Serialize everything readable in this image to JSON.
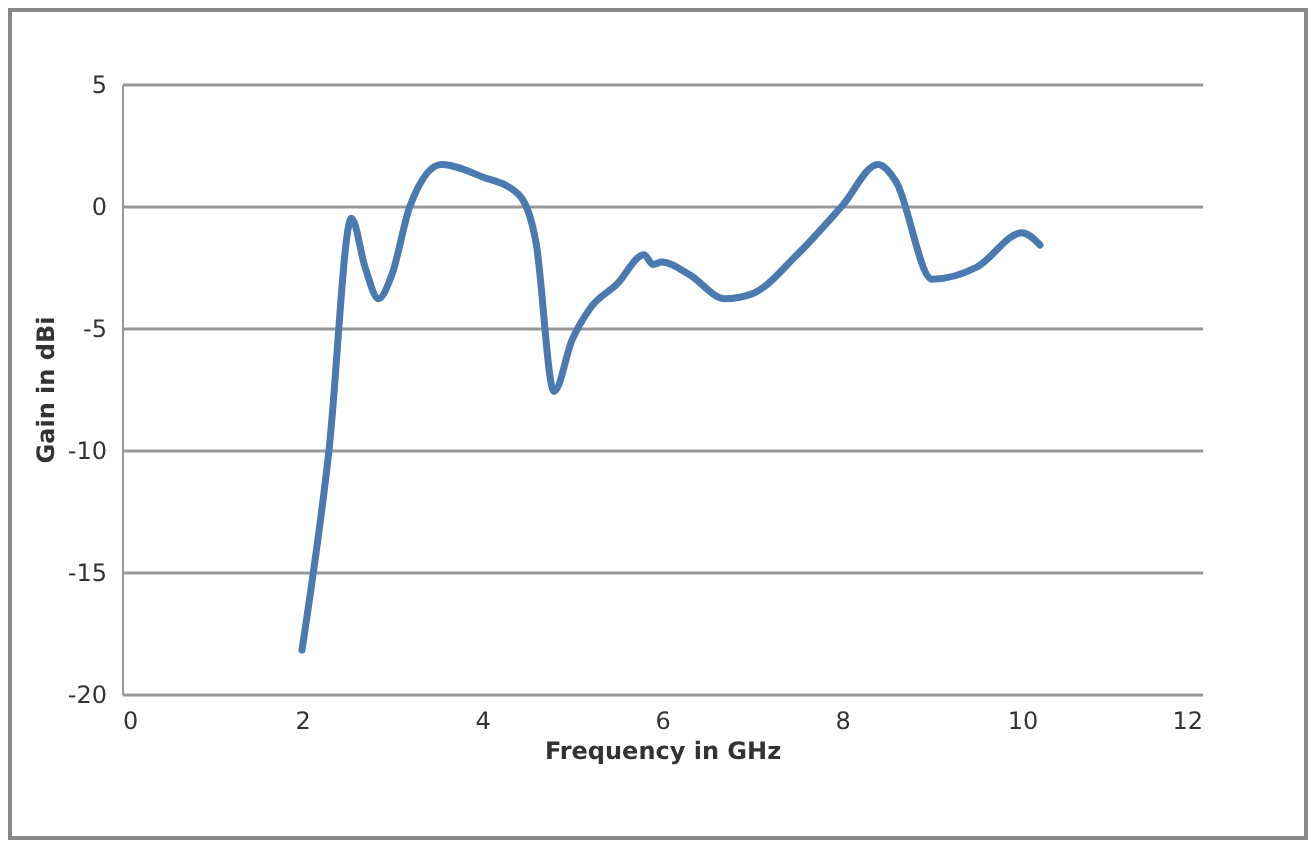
{
  "chart_data": {
    "type": "line",
    "xlabel": "Frequency in GHz",
    "ylabel": "Gain in dBi",
    "x": [
      2,
      2.3,
      2.55,
      2.7,
      2.85,
      3.0,
      3.2,
      3.55,
      4.0,
      4.4,
      4.6,
      4.8,
      5.0,
      5.2,
      5.5,
      5.8,
      5.9,
      6.0,
      6.3,
      6.7,
      7.0,
      7.5,
      8.0,
      8.4,
      8.6,
      9.0,
      9.5,
      10.0,
      10.2
    ],
    "series": [
      {
        "color": "#4a7ab0",
        "values": [
          -18.2,
          -10,
          -0.5,
          -2.5,
          -3.8,
          -2.8,
          0,
          1.7,
          1.2,
          0.5,
          -1.5,
          -7.6,
          -5.5,
          -4.2,
          -3.2,
          -2.0,
          -2.4,
          -2.3,
          -2.8,
          -3.8,
          -3.6,
          -2.0,
          0,
          1.7,
          1.0,
          -3.0,
          -2.5,
          -1.1,
          -1.6
        ]
      }
    ],
    "xlim": [
      0,
      12
    ],
    "xticks": [
      0,
      2,
      4,
      6,
      8,
      10,
      12
    ],
    "ylim": [
      -20,
      5
    ],
    "yticks": [
      -20,
      -15,
      -10,
      -5,
      0,
      5
    ],
    "grid": "y",
    "marker": "none",
    "line_style": "solid"
  }
}
